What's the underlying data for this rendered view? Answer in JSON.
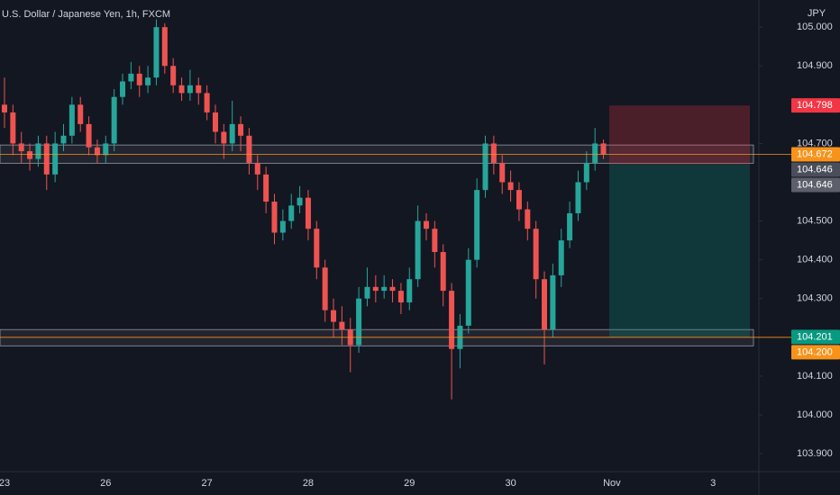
{
  "chart_data": {
    "type": "candlestick",
    "title": "U.S. Dollar / Japanese Yen, 1h, FXCM",
    "y_axis_label": "JPY",
    "up_color": "#26a69a",
    "down_color": "#ef5350",
    "grid": false,
    "ylim": [
      103.863,
      105.07
    ],
    "yticks": [
      {
        "value": 105.0,
        "label": "105.000"
      },
      {
        "value": 104.9,
        "label": "104.900"
      },
      {
        "value": 104.7,
        "label": "104.700"
      },
      {
        "value": 104.5,
        "label": "104.500"
      },
      {
        "value": 104.4,
        "label": "104.400"
      },
      {
        "value": 104.3,
        "label": "104.300"
      },
      {
        "value": 104.1,
        "label": "104.100"
      },
      {
        "value": 104.0,
        "label": "104.000"
      },
      {
        "value": 103.9,
        "label": "103.900"
      }
    ],
    "categories": [
      "23",
      null,
      null,
      null,
      null,
      null,
      null,
      null,
      null,
      null,
      null,
      null,
      "26",
      null,
      null,
      null,
      null,
      null,
      null,
      null,
      null,
      null,
      null,
      null,
      "27",
      null,
      null,
      null,
      null,
      null,
      null,
      null,
      null,
      null,
      null,
      null,
      "28",
      null,
      null,
      null,
      null,
      null,
      null,
      null,
      null,
      null,
      null,
      null,
      "29",
      null,
      null,
      null,
      null,
      null,
      null,
      null,
      null,
      null,
      null,
      null,
      "30",
      null,
      null,
      null,
      null,
      null,
      null,
      null,
      null,
      null,
      null,
      null,
      "Nov",
      null,
      null,
      null,
      null,
      null,
      null,
      null,
      null,
      null,
      null,
      null,
      "3",
      null,
      null,
      null,
      null,
      null
    ],
    "open": [
      104.8,
      104.78,
      104.7,
      104.68,
      104.66,
      104.7,
      104.62,
      104.7,
      104.72,
      104.8,
      104.75,
      104.69,
      104.67,
      104.7,
      104.82,
      104.86,
      104.88,
      104.85,
      104.87,
      105.0,
      104.9,
      104.85,
      104.83,
      104.85,
      104.83,
      104.78,
      104.73,
      104.7,
      104.75,
      104.72,
      104.65,
      104.62,
      104.55,
      104.47,
      104.5,
      104.54,
      104.56,
      104.48,
      104.38,
      104.27,
      104.24,
      104.22,
      104.18,
      104.3,
      104.33,
      104.32,
      104.33,
      104.32,
      104.29,
      104.35,
      104.5,
      104.48,
      104.42,
      104.32,
      104.17,
      104.23,
      104.4,
      104.58,
      104.7,
      104.65,
      104.6,
      104.58,
      104.53,
      104.48,
      104.35,
      104.22,
      104.36,
      104.45,
      104.52,
      104.6,
      104.65,
      104.7,
      null,
      null,
      null,
      null,
      null,
      null,
      null,
      null,
      null,
      null,
      null,
      null,
      null,
      null,
      null,
      null,
      null,
      null
    ],
    "high": [
      104.87,
      104.8,
      104.73,
      104.7,
      104.72,
      104.72,
      104.73,
      104.75,
      104.82,
      104.82,
      104.77,
      104.71,
      104.72,
      104.84,
      104.88,
      104.91,
      104.9,
      104.9,
      105.02,
      105.01,
      104.92,
      104.87,
      104.89,
      104.87,
      104.85,
      104.8,
      104.75,
      104.81,
      104.77,
      104.74,
      104.67,
      104.64,
      104.57,
      104.53,
      104.57,
      104.59,
      104.58,
      104.5,
      104.4,
      104.3,
      104.28,
      104.25,
      104.33,
      104.38,
      104.36,
      104.36,
      104.35,
      104.34,
      104.38,
      104.54,
      104.52,
      104.5,
      104.44,
      104.34,
      104.26,
      104.43,
      104.61,
      104.72,
      104.72,
      104.67,
      104.63,
      104.6,
      104.55,
      104.5,
      104.37,
      104.39,
      104.48,
      104.55,
      104.63,
      104.68,
      104.74,
      104.71,
      null,
      null,
      null,
      null,
      null,
      null,
      null,
      null,
      null,
      null,
      null,
      null,
      null,
      null,
      null,
      null,
      null,
      null
    ],
    "low": [
      104.74,
      104.67,
      104.65,
      104.63,
      104.64,
      104.58,
      104.6,
      104.68,
      104.7,
      104.73,
      104.67,
      104.65,
      104.65,
      104.68,
      104.8,
      104.84,
      104.82,
      104.83,
      104.85,
      104.88,
      104.83,
      104.81,
      104.81,
      104.8,
      104.76,
      104.7,
      104.66,
      104.68,
      104.68,
      104.62,
      104.58,
      104.52,
      104.44,
      104.45,
      104.48,
      104.52,
      104.45,
      104.35,
      104.24,
      104.2,
      104.18,
      104.11,
      104.16,
      104.28,
      104.29,
      104.3,
      104.29,
      104.26,
      104.27,
      104.33,
      104.45,
      104.38,
      104.28,
      104.04,
      104.12,
      104.21,
      104.38,
      104.56,
      104.62,
      104.57,
      104.55,
      104.5,
      104.45,
      104.3,
      104.13,
      104.2,
      104.33,
      104.43,
      104.5,
      104.58,
      104.63,
      104.66,
      null,
      null,
      null,
      null,
      null,
      null,
      null,
      null,
      null,
      null,
      null,
      null,
      null,
      null,
      null,
      null,
      null,
      null
    ],
    "close": [
      104.78,
      104.7,
      104.68,
      104.66,
      104.7,
      104.62,
      104.7,
      104.72,
      104.8,
      104.75,
      104.69,
      104.67,
      104.7,
      104.82,
      104.86,
      104.88,
      104.85,
      104.87,
      105.0,
      104.9,
      104.85,
      104.83,
      104.85,
      104.83,
      104.78,
      104.73,
      104.7,
      104.75,
      104.72,
      104.65,
      104.62,
      104.55,
      104.47,
      104.5,
      104.54,
      104.56,
      104.48,
      104.38,
      104.27,
      104.24,
      104.22,
      104.18,
      104.3,
      104.33,
      104.32,
      104.33,
      104.32,
      104.29,
      104.35,
      104.5,
      104.48,
      104.42,
      104.32,
      104.17,
      104.23,
      104.4,
      104.58,
      104.7,
      104.65,
      104.6,
      104.58,
      104.53,
      104.48,
      104.35,
      104.22,
      104.36,
      104.45,
      104.52,
      104.6,
      104.65,
      104.7,
      104.672,
      null,
      null,
      null,
      null,
      null,
      null,
      null,
      null,
      null,
      null,
      null,
      null,
      null,
      null,
      null,
      null,
      null,
      null
    ],
    "zones": [
      {
        "top": 104.696,
        "bottom": 104.649
      },
      {
        "top": 104.22,
        "bottom": 104.178
      }
    ],
    "position": {
      "stop": 104.798,
      "entry": 104.646,
      "target": 104.201
    },
    "price_labels": [
      {
        "value": 104.798,
        "label": "104.798",
        "color": "#f23645"
      },
      {
        "value": 104.672,
        "label": "104.672",
        "color": "#f7931a"
      },
      {
        "value": 104.646,
        "label": "104.646",
        "color": "#4a4e5a"
      },
      {
        "value": 104.646,
        "label": "104.646",
        "color": "#5d606b"
      },
      {
        "value": 104.201,
        "label": "104.201",
        "color": "#089981"
      },
      {
        "value": 104.2,
        "label": "104.200",
        "color": "#f7931a"
      }
    ]
  }
}
